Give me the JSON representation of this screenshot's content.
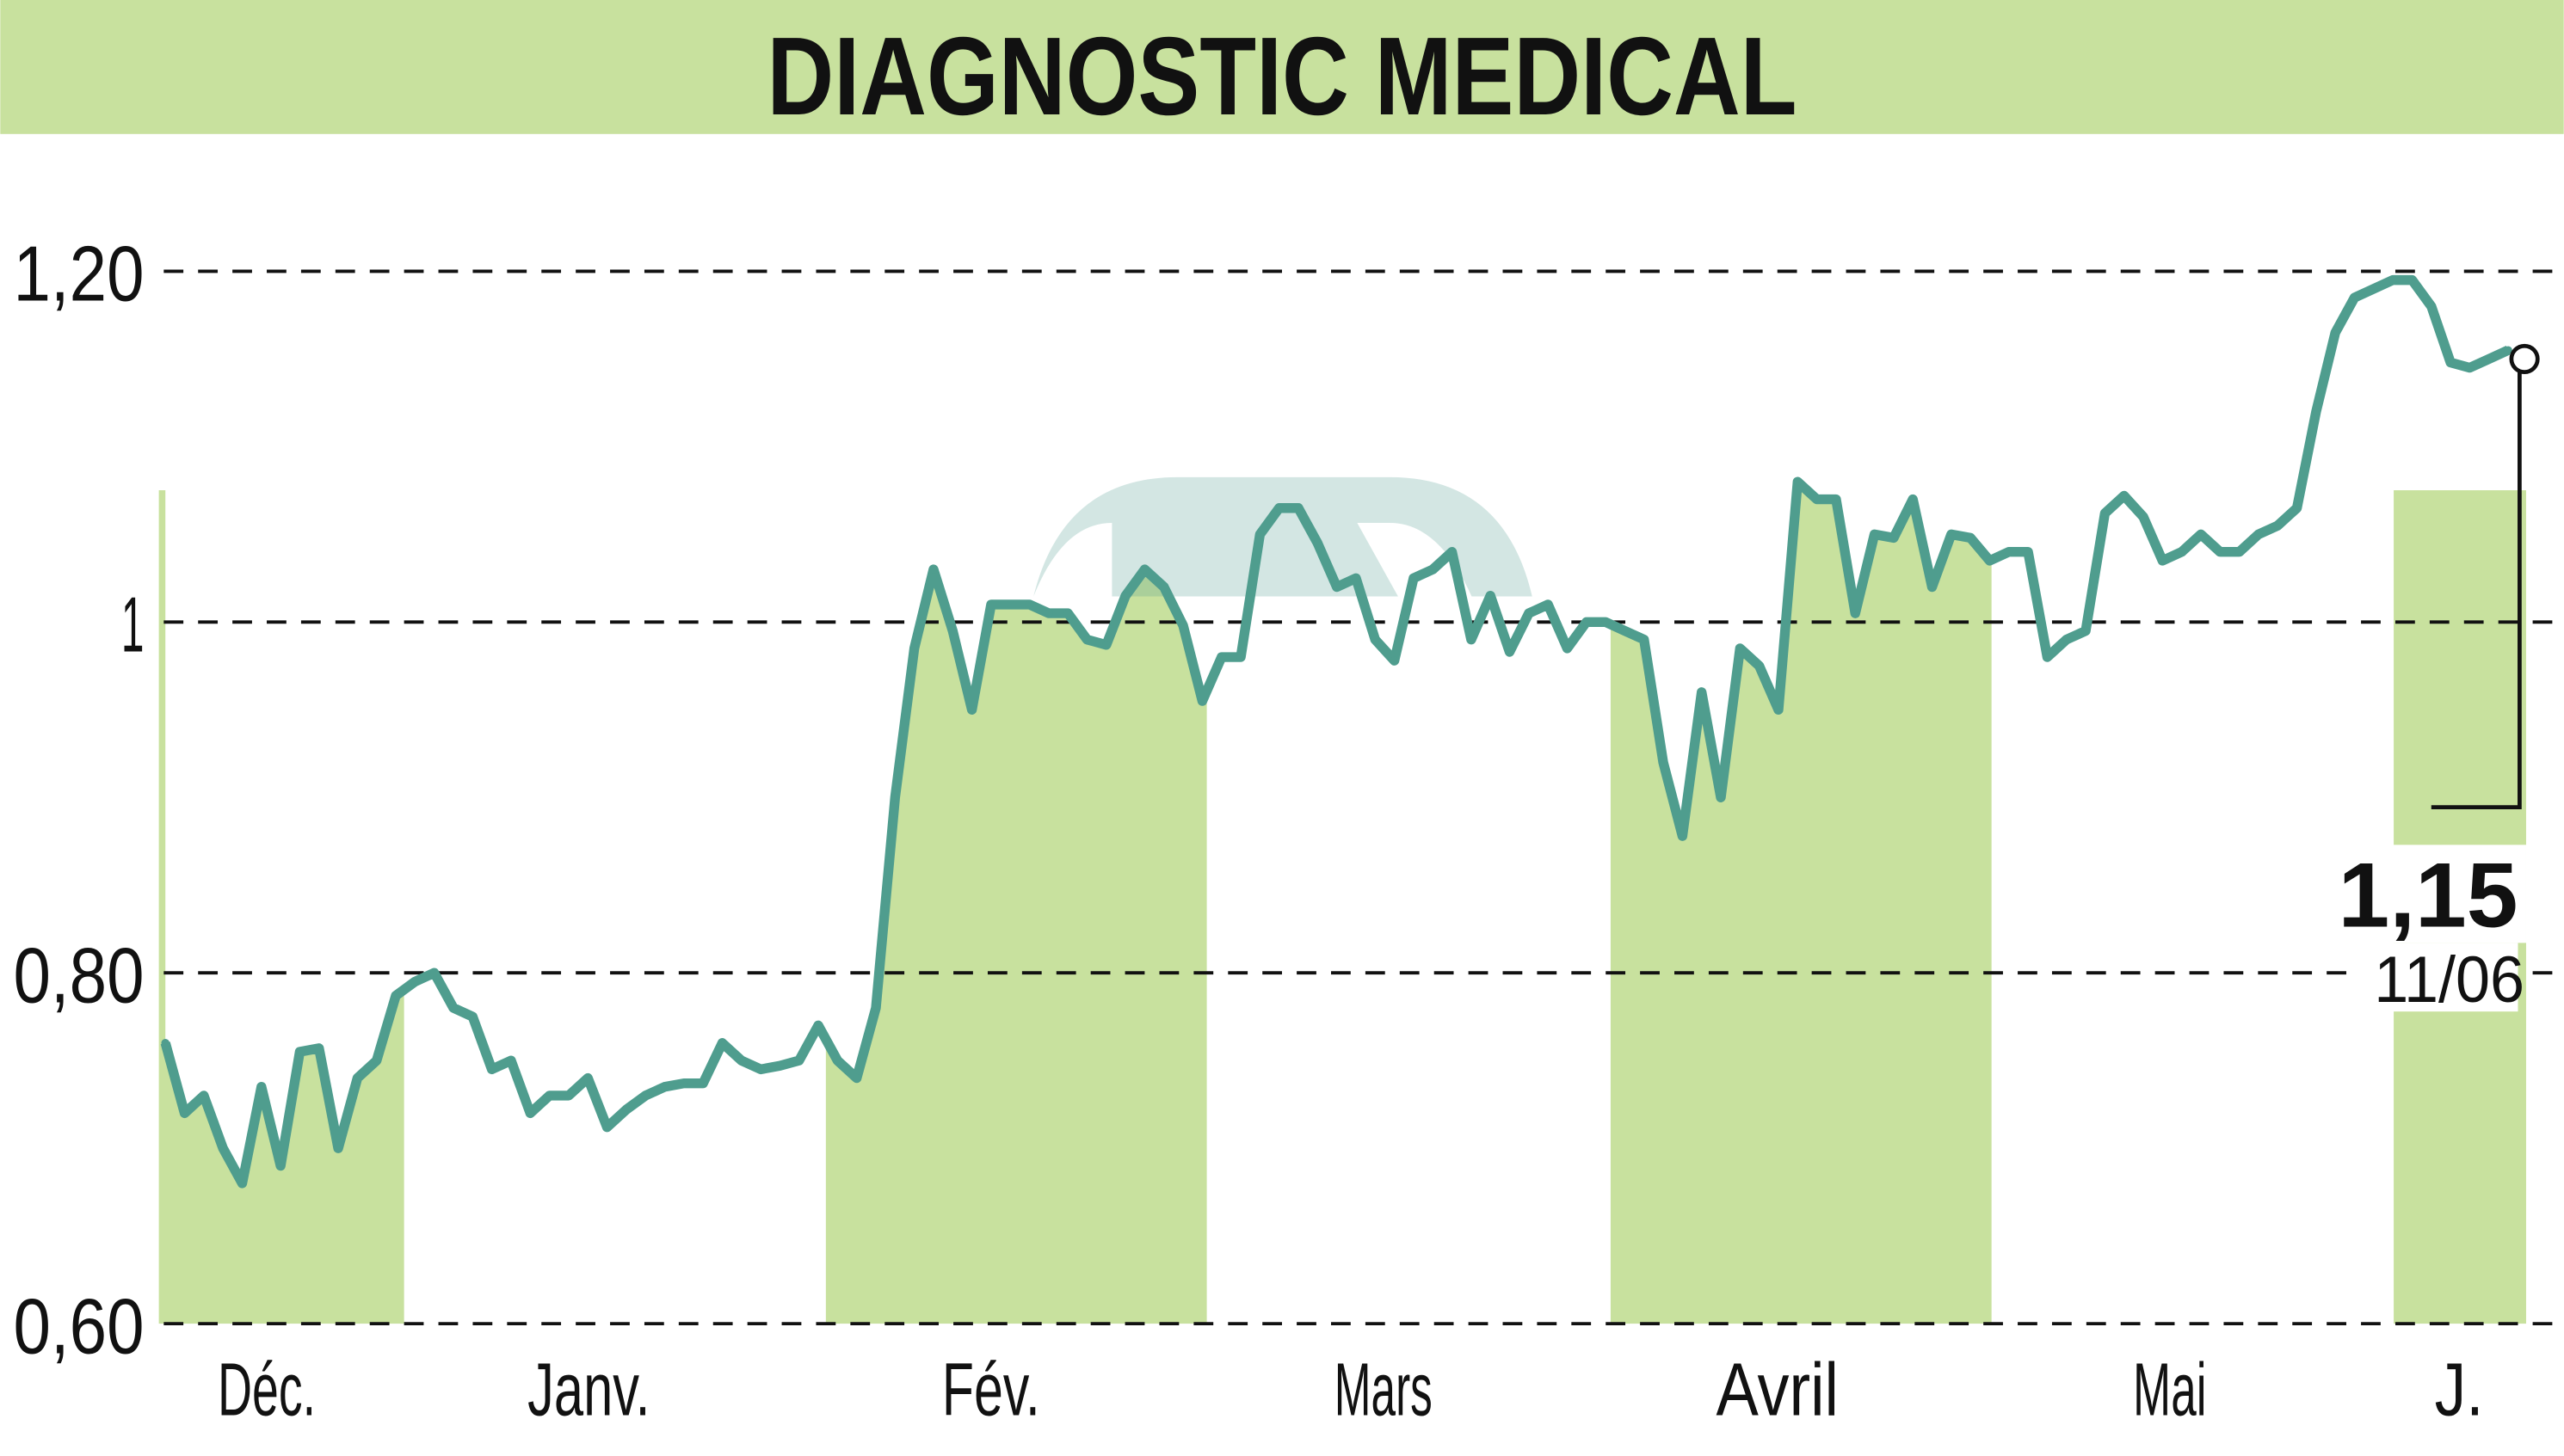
{
  "colors": {
    "band": "#c8e19e",
    "line": "#4f9d8e",
    "grid": "#111111",
    "text": "#111111"
  },
  "chart_data": {
    "type": "line",
    "title": "DIAGNOSTIC MEDICAL",
    "xlabel": "",
    "ylabel": "",
    "ylim": [
      0.6,
      1.2
    ],
    "yticks": [
      {
        "v": 1.2,
        "label": "1,20"
      },
      {
        "v": 1.0,
        "label": "1"
      },
      {
        "v": 0.8,
        "label": "0,80"
      },
      {
        "v": 0.6,
        "label": "0,60"
      }
    ],
    "grid": true,
    "months": [
      "Déc.",
      "Janv.",
      "Fév.",
      "Mars",
      "Avril",
      "Mai",
      "J."
    ],
    "values": [
      0.76,
      0.72,
      0.73,
      0.7,
      0.68,
      0.735,
      0.69,
      0.755,
      0.757,
      0.7,
      0.74,
      0.75,
      0.787,
      0.795,
      0.8,
      0.78,
      0.775,
      0.745,
      0.75,
      0.72,
      0.73,
      0.73,
      0.74,
      0.712,
      0.722,
      0.73,
      0.735,
      0.737,
      0.737,
      0.76,
      0.75,
      0.745,
      0.747,
      0.75,
      0.77,
      0.75,
      0.74,
      0.78,
      0.9,
      0.985,
      1.03,
      0.995,
      0.95,
      1.01,
      1.01,
      1.01,
      1.005,
      1.005,
      0.99,
      0.987,
      1.015,
      1.03,
      1.02,
      0.998,
      0.955,
      0.98,
      0.98,
      1.05,
      1.065,
      1.065,
      1.045,
      1.02,
      1.025,
      0.99,
      0.978,
      1.025,
      1.03,
      1.04,
      0.99,
      1.015,
      0.983,
      1.005,
      1.01,
      0.985,
      1.0,
      1.0,
      0.995,
      0.99,
      0.92,
      0.878,
      0.96,
      0.9,
      0.985,
      0.975,
      0.95,
      1.08,
      1.07,
      1.07,
      1.005,
      1.05,
      1.048,
      1.07,
      1.02,
      1.05,
      1.048,
      1.035,
      1.04,
      1.04,
      0.98,
      0.99,
      0.995,
      1.062,
      1.072,
      1.06,
      1.035,
      1.04,
      1.05,
      1.04,
      1.04,
      1.05,
      1.055,
      1.065,
      1.12,
      1.165,
      1.185,
      1.19,
      1.195,
      1.195,
      1.18,
      1.148,
      1.145,
      1.15,
      1.155
    ],
    "last": {
      "value": "1,15",
      "date": "11/06"
    }
  }
}
